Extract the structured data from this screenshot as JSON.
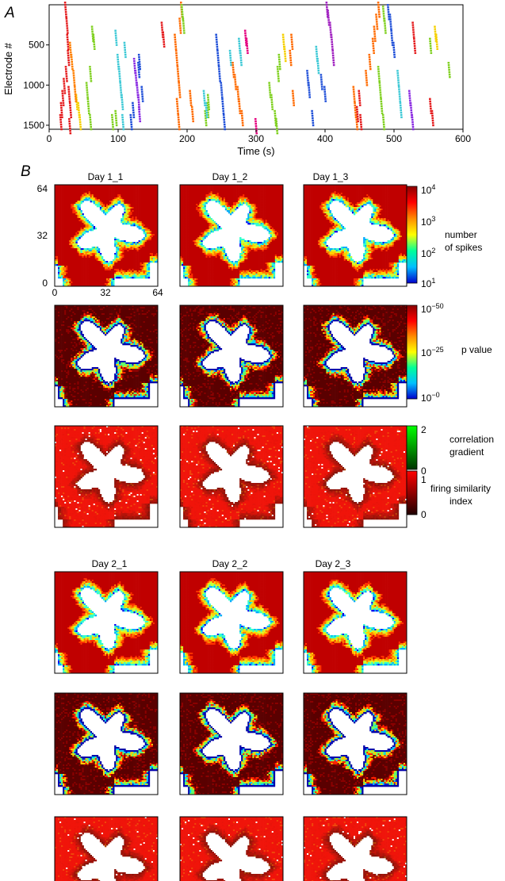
{
  "panel_a_letter": "A",
  "panel_b_letter": "B",
  "chart_data": [
    {
      "type": "scatter",
      "xlabel": "Time (s)",
      "ylabel": "Electrode #",
      "xlim": [
        0,
        600
      ],
      "ylim": [
        1550,
        0
      ],
      "xticks": [
        0,
        100,
        200,
        300,
        400,
        500,
        600
      ],
      "yticks": [
        500,
        1000,
        1500
      ],
      "grid": false,
      "series": [
        {
          "color": "#e41a1c",
          "points": [
            [
              24,
              50
            ],
            [
              26,
              250
            ],
            [
              27,
              450
            ],
            [
              28,
              650
            ],
            [
              25,
              850
            ],
            [
              22,
              1000
            ],
            [
              20,
              1150
            ],
            [
              18,
              1300
            ],
            [
              17,
              1450
            ],
            [
              29,
              1100
            ],
            [
              31,
              1300
            ],
            [
              30,
              1500
            ]
          ]
        },
        {
          "color": "#f5d000",
          "points": [
            [
              43,
              1300
            ],
            [
              45,
              1450
            ],
            [
              40,
              1200
            ]
          ]
        },
        {
          "color": "#7fd01f",
          "points": [
            [
              63,
              350
            ],
            [
              65,
              450
            ],
            [
              60,
              850
            ],
            [
              55,
              1050
            ],
            [
              57,
              1250
            ],
            [
              60,
              1450
            ],
            [
              92,
              1450
            ],
            [
              97,
              1400
            ]
          ]
        },
        {
          "color": "#ff7f00",
          "points": [
            [
              31,
              550
            ],
            [
              33,
              700
            ],
            [
              36,
              900
            ],
            [
              38,
              1100
            ]
          ]
        },
        {
          "color": "#3ec9d6",
          "points": [
            [
              97,
              400
            ],
            [
              100,
              700
            ],
            [
              102,
              850
            ],
            [
              104,
              1050
            ],
            [
              106,
              1200
            ],
            [
              107,
              1450
            ],
            [
              110,
              550
            ]
          ]
        },
        {
          "color": "#8a2be2",
          "points": [
            [
              124,
              750
            ],
            [
              126,
              900
            ],
            [
              128,
              1050
            ],
            [
              130,
              1200
            ],
            [
              131,
              1350
            ]
          ]
        },
        {
          "color": "#1f4fd8",
          "points": [
            [
              119,
              1450
            ],
            [
              122,
              1300
            ],
            [
              130,
              800
            ],
            [
              131,
              700
            ],
            [
              135,
              1100
            ]
          ]
        },
        {
          "color": "#ff6a00",
          "points": [
            [
              183,
              450
            ],
            [
              185,
              650
            ],
            [
              187,
              850
            ],
            [
              189,
              1050
            ],
            [
              186,
              1250
            ],
            [
              188,
              1450
            ],
            [
              192,
              50
            ],
            [
              190,
              250
            ],
            [
              205,
              1150
            ],
            [
              208,
              1350
            ]
          ]
        },
        {
          "color": "#7fd01f",
          "points": [
            [
              193,
              80
            ],
            [
              195,
              250
            ],
            [
              227,
              1400
            ],
            [
              230,
              1300
            ],
            [
              231,
              1200
            ]
          ]
        },
        {
          "color": "#e41a1c",
          "points": [
            [
              164,
              300
            ],
            [
              166,
              420
            ]
          ]
        },
        {
          "color": "#1f4fd8",
          "points": [
            [
              243,
              450
            ],
            [
              245,
              650
            ],
            [
              247,
              850
            ],
            [
              250,
              1050
            ],
            [
              252,
              1250
            ],
            [
              254,
              1450
            ]
          ]
        },
        {
          "color": "#3ec9d6",
          "points": [
            [
              225,
              1150
            ],
            [
              228,
              1300
            ],
            [
              276,
              500
            ],
            [
              278,
              650
            ],
            [
              263,
              650
            ]
          ]
        },
        {
          "color": "#ff6a00",
          "points": [
            [
              267,
              800
            ],
            [
              270,
              950
            ],
            [
              274,
              1100
            ],
            [
              276,
              1250
            ],
            [
              280,
              1400
            ]
          ]
        },
        {
          "color": "#e5007f",
          "points": [
            [
              285,
              400
            ],
            [
              287,
              500
            ],
            [
              300,
              1500
            ]
          ]
        },
        {
          "color": "#7fd01f",
          "points": [
            [
              320,
              1050
            ],
            [
              323,
              1200
            ],
            [
              328,
              1400
            ],
            [
              332,
              850
            ],
            [
              334,
              700
            ],
            [
              330,
              1500
            ]
          ]
        },
        {
          "color": "#f5d000",
          "points": [
            [
              340,
              450
            ],
            [
              342,
              600
            ]
          ]
        },
        {
          "color": "#ff6a00",
          "points": [
            [
              350,
              650
            ],
            [
              352,
              450
            ],
            [
              354,
              1150
            ]
          ]
        },
        {
          "color": "#1f4fd8",
          "points": [
            [
              375,
              900
            ],
            [
              377,
              1050
            ],
            [
              382,
              1400
            ],
            [
              395,
              950
            ],
            [
              400,
              1100
            ]
          ]
        },
        {
          "color": "#a020c0",
          "points": [
            [
              403,
              50
            ],
            [
              405,
              150
            ],
            [
              408,
              300
            ],
            [
              410,
              450
            ],
            [
              412,
              650
            ]
          ]
        },
        {
          "color": "#3ec9d6",
          "points": [
            [
              388,
              600
            ],
            [
              390,
              750
            ]
          ]
        },
        {
          "color": "#ff6a00",
          "points": [
            [
              442,
              1100
            ],
            [
              444,
              1300
            ],
            [
              446,
              1450
            ],
            [
              460,
              900
            ],
            [
              465,
              700
            ],
            [
              470,
              500
            ],
            [
              472,
              350
            ],
            [
              475,
              200
            ],
            [
              478,
              50
            ]
          ]
        },
        {
          "color": "#e41a1c",
          "points": [
            [
              447,
              1350
            ],
            [
              450,
              1150
            ],
            [
              452,
              1450
            ]
          ]
        },
        {
          "color": "#7fd01f",
          "points": [
            [
              478,
              850
            ],
            [
              480,
              1050
            ],
            [
              482,
              1250
            ],
            [
              485,
              1450
            ],
            [
              485,
              100
            ],
            [
              487,
              250
            ]
          ]
        },
        {
          "color": "#1f4fd8",
          "points": [
            [
              492,
              80
            ],
            [
              495,
              200
            ],
            [
              497,
              400
            ],
            [
              500,
              550
            ]
          ]
        },
        {
          "color": "#3ec9d6",
          "points": [
            [
              506,
              900
            ],
            [
              508,
              1100
            ],
            [
              510,
              1300
            ]
          ]
        },
        {
          "color": "#8a2be2",
          "points": [
            [
              523,
              1150
            ],
            [
              525,
              1300
            ],
            [
              527,
              1450
            ]
          ]
        },
        {
          "color": "#e41a1c",
          "points": [
            [
              528,
              300
            ],
            [
              530,
              500
            ],
            [
              553,
              1250
            ],
            [
              556,
              1400
            ]
          ]
        },
        {
          "color": "#7fd01f",
          "points": [
            [
              553,
              500
            ],
            [
              580,
              800
            ]
          ]
        },
        {
          "color": "#f5d000",
          "points": [
            [
              560,
              350
            ],
            [
              562,
              450
            ]
          ]
        }
      ]
    },
    {
      "type": "heatmap",
      "grid_size": 64,
      "rows": 6,
      "columns": 3,
      "titles": [
        "Day 1_1",
        "Day 1_2",
        "Day 1_3",
        "Day 2_1",
        "Day 2_2",
        "Day 2_3"
      ],
      "tick_labels": [
        "0",
        "32",
        "64"
      ],
      "row_measures": [
        "spikes",
        "pvalue",
        "similarity",
        "spikes",
        "pvalue",
        "similarity"
      ]
    }
  ],
  "colorbars": {
    "spikes": {
      "ticks": [
        "10^4",
        "10^3",
        "10^2",
        "10^1"
      ],
      "label": [
        "number",
        "of spikes"
      ],
      "colors": [
        "#8b0000",
        "#ff0000",
        "#ff8c00",
        "#ffff00",
        "#00ff99",
        "#00bfff",
        "#0000cc"
      ]
    },
    "pvalue": {
      "ticks": [
        "10^−50",
        "10^−25",
        "10^−0"
      ],
      "label": "p value",
      "colors": [
        "#8b0000",
        "#ff0000",
        "#ff8c00",
        "#ffff00",
        "#00ff99",
        "#00bfff",
        "#0000cc"
      ]
    },
    "correlation": {
      "ticks": [
        "2",
        "0"
      ],
      "label": [
        "correlation",
        "gradient"
      ],
      "colors": [
        "#00ff00",
        "#003300"
      ]
    },
    "similarity": {
      "ticks": [
        "1",
        "0"
      ],
      "label": [
        "firing similarity",
        "index"
      ],
      "colors": [
        "#ff0000",
        "#200000"
      ]
    }
  }
}
